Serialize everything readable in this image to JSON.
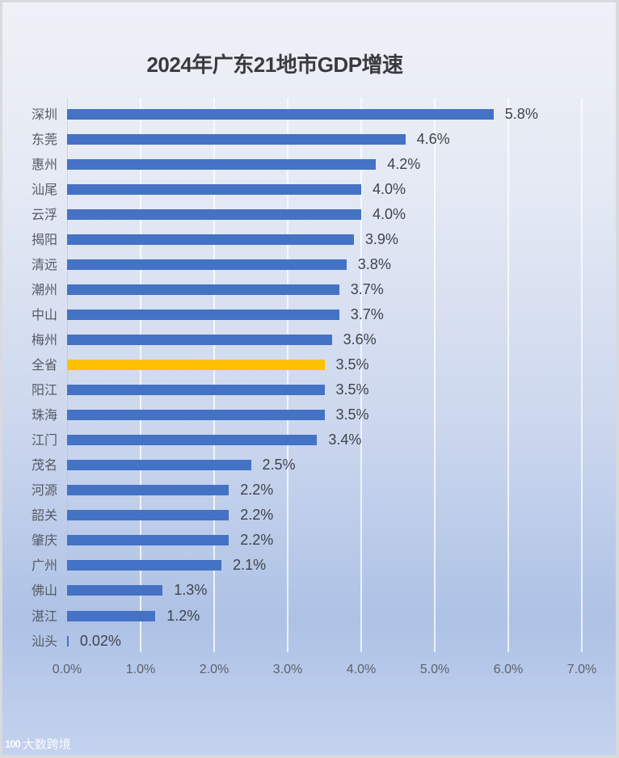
{
  "chart_data": {
    "type": "bar",
    "orientation": "horizontal",
    "title": "2024年广东21地市GDP增速",
    "xlabel": "",
    "ylabel": "",
    "xlim": [
      0,
      7
    ],
    "grid": true,
    "legend": null,
    "x_ticks": [
      "0.0%",
      "1.0%",
      "2.0%",
      "3.0%",
      "4.0%",
      "5.0%",
      "6.0%",
      "7.0%"
    ],
    "categories": [
      "深圳",
      "东莞",
      "惠州",
      "汕尾",
      "云浮",
      "揭阳",
      "清远",
      "潮州",
      "中山",
      "梅州",
      "全省",
      "阳江",
      "珠海",
      "江门",
      "茂名",
      "河源",
      "韶关",
      "肇庆",
      "广州",
      "佛山",
      "湛江",
      "汕头"
    ],
    "values": [
      5.8,
      4.6,
      4.2,
      4.0,
      4.0,
      3.9,
      3.8,
      3.7,
      3.7,
      3.6,
      3.5,
      3.5,
      3.5,
      3.4,
      2.5,
      2.2,
      2.2,
      2.2,
      2.1,
      1.3,
      1.2,
      0.02
    ],
    "labels": [
      "5.8%",
      "4.6%",
      "4.2%",
      "4.0%",
      "4.0%",
      "3.9%",
      "3.8%",
      "3.7%",
      "3.7%",
      "3.6%",
      "3.5%",
      "3.5%",
      "3.5%",
      "3.4%",
      "2.5%",
      "2.2%",
      "2.2%",
      "2.2%",
      "2.1%",
      "1.3%",
      "1.2%",
      "0.02%"
    ],
    "highlight": "全省",
    "colors": {
      "bar": "#4472c4",
      "highlight": "#ffc000"
    }
  },
  "watermark": {
    "logo": "100",
    "text": "大数跨境"
  }
}
